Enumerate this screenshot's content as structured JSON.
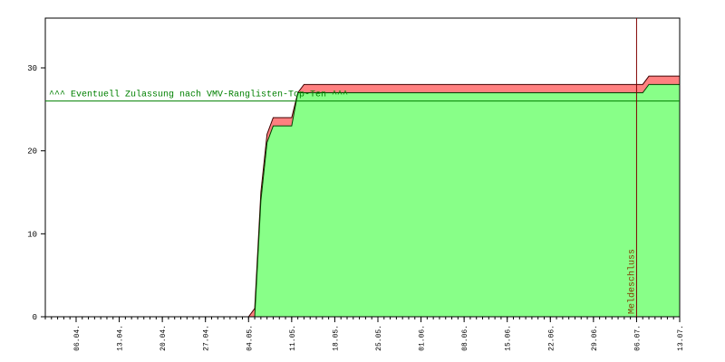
{
  "chart_data": {
    "type": "area",
    "x": [
      "01.04.",
      "04.05.",
      "05.05.",
      "06.05.",
      "07.05.",
      "08.05.",
      "11.05.",
      "12.05.",
      "13.05.",
      "07.07.",
      "08.07.",
      "13.07."
    ],
    "series": [
      {
        "color": "#ff8080",
        "values": [
          0,
          0,
          1,
          15,
          22,
          24,
          24,
          27,
          28,
          28,
          29,
          29
        ]
      },
      {
        "color": "#88ff88",
        "values": [
          0,
          0,
          0,
          14,
          21,
          23,
          23,
          27,
          27,
          27,
          28,
          28
        ]
      }
    ],
    "xlim": [
      "01.04.",
      "13.07."
    ],
    "xticks": [
      "06.04.",
      "13.04.",
      "20.04.",
      "27.04.",
      "04.05.",
      "11.05.",
      "18.05.",
      "25.05.",
      "01.06.",
      "08.06.",
      "15.06.",
      "22.06.",
      "29.06.",
      "06.07.",
      "13.07."
    ],
    "ylim": [
      0,
      36
    ],
    "yticks": [
      0,
      10,
      20,
      30
    ],
    "reference_line": {
      "value": 26,
      "label": "^^^ Eventuell Zulassung nach VMV-Ranglisten-Top-Ten ^^^",
      "color": "#008000"
    },
    "deadline": {
      "x": "06.07.",
      "label": "Meldeschluss",
      "color": "#800000"
    }
  }
}
